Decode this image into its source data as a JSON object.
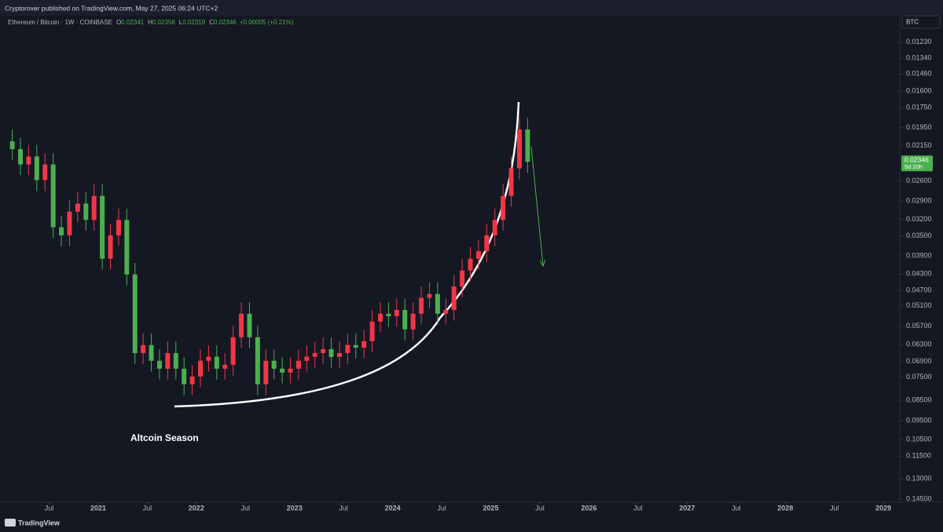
{
  "chart_data": {
    "type": "candlestick",
    "published": "Cryptorover published on TradingView.com, May 27, 2025 06:24 UTC+2",
    "symbol": "Ethereum / Bitcoin · 1W · COINBASE",
    "header_fields": [
      {
        "label": "O",
        "value": 0.02341
      },
      {
        "label": "H",
        "value": 0.02358
      },
      {
        "label": "L",
        "value": 0.02319
      },
      {
        "label": "C",
        "value": 0.02346
      }
    ],
    "change": "+0.00005 (+0.21%)",
    "currency": "BTC",
    "countdown": "5d 20h",
    "annotation": "Altcoin Season",
    "brand": "TradingView",
    "log_scale": true,
    "inverted": true,
    "grid": false,
    "up_color": "#4caf50",
    "down_color": "#f23645",
    "xlim": [
      "2020-01",
      "2029-03"
    ],
    "ylim": [
      0.0116,
      0.1462
    ],
    "x": [
      "2020-02",
      "2020-03",
      "2020-04",
      "2020-05",
      "2020-06",
      "2020-07",
      "2020-08",
      "2020-09",
      "2020-10",
      "2020-11",
      "2020-12",
      "2021-01",
      "2021-02",
      "2021-03",
      "2021-04",
      "2021-05",
      "2021-06",
      "2021-07",
      "2021-08",
      "2021-09",
      "2021-10",
      "2021-11",
      "2021-12",
      "2022-01",
      "2022-02",
      "2022-03",
      "2022-04",
      "2022-05",
      "2022-06",
      "2022-07",
      "2022-08",
      "2022-09",
      "2022-10",
      "2022-11",
      "2022-12",
      "2023-01",
      "2023-02",
      "2023-03",
      "2023-04",
      "2023-05",
      "2023-06",
      "2023-07",
      "2023-08",
      "2023-09",
      "2023-10",
      "2023-11",
      "2023-12",
      "2024-01",
      "2024-02",
      "2024-03",
      "2024-04",
      "2024-05",
      "2024-06",
      "2024-07",
      "2024-08",
      "2024-09",
      "2024-10",
      "2024-11",
      "2024-12",
      "2025-01",
      "2025-02",
      "2025-03",
      "2025-04",
      "2025-05"
    ],
    "open": [
      0.021,
      0.0219,
      0.0238,
      0.0228,
      0.0259,
      0.0238,
      0.0334,
      0.0349,
      0.0307,
      0.0294,
      0.0321,
      0.0282,
      0.0396,
      0.0349,
      0.0321,
      0.0431,
      0.0659,
      0.0631,
      0.0687,
      0.0717,
      0.0659,
      0.0717,
      0.078,
      0.0748,
      0.0687,
      0.0672,
      0.0717,
      0.0702,
      0.0605,
      0.0533,
      0.0605,
      0.078,
      0.0687,
      0.0717,
      0.0732,
      0.0717,
      0.0687,
      0.0672,
      0.0659,
      0.0645,
      0.0673,
      0.0659,
      0.0631,
      0.064,
      0.0618,
      0.0556,
      0.0533,
      0.054,
      0.0522,
      0.058,
      0.0533,
      0.0489,
      0.0479,
      0.0533,
      0.0522,
      0.046,
      0.0422,
      0.0396,
      0.038,
      0.0349,
      0.0321,
      0.0282,
      0.0243,
      0.0197
    ],
    "high": [
      0.0232,
      0.0252,
      0.0252,
      0.0275,
      0.0275,
      0.0354,
      0.037,
      0.037,
      0.0325,
      0.034,
      0.034,
      0.042,
      0.042,
      0.037,
      0.0457,
      0.0699,
      0.0699,
      0.0728,
      0.076,
      0.076,
      0.076,
      0.0827,
      0.0827,
      0.0793,
      0.0728,
      0.076,
      0.076,
      0.0744,
      0.0641,
      0.0641,
      0.0827,
      0.0827,
      0.076,
      0.0776,
      0.0776,
      0.076,
      0.0728,
      0.0712,
      0.0699,
      0.0713,
      0.0713,
      0.0699,
      0.0678,
      0.0678,
      0.0655,
      0.0589,
      0.0572,
      0.0572,
      0.0615,
      0.0615,
      0.0565,
      0.0518,
      0.0565,
      0.0565,
      0.0553,
      0.0488,
      0.0447,
      0.042,
      0.0403,
      0.037,
      0.034,
      0.0299,
      0.0258,
      0.0249
    ],
    "low": [
      0.0197,
      0.0206,
      0.0214,
      0.0214,
      0.0224,
      0.0224,
      0.0314,
      0.0289,
      0.0276,
      0.0276,
      0.0265,
      0.0265,
      0.0328,
      0.0302,
      0.0302,
      0.0405,
      0.0593,
      0.0593,
      0.0646,
      0.0619,
      0.0619,
      0.0674,
      0.0703,
      0.0646,
      0.0632,
      0.0632,
      0.066,
      0.0569,
      0.0501,
      0.0501,
      0.0569,
      0.0646,
      0.0646,
      0.0674,
      0.0674,
      0.0646,
      0.0632,
      0.0619,
      0.0606,
      0.0606,
      0.0619,
      0.0593,
      0.0593,
      0.0581,
      0.0523,
      0.0501,
      0.0501,
      0.0491,
      0.0491,
      0.0501,
      0.046,
      0.045,
      0.045,
      0.0491,
      0.0432,
      0.0397,
      0.0372,
      0.0357,
      0.0328,
      0.0302,
      0.0265,
      0.0228,
      0.0185,
      0.0185
    ],
    "close": [
      0.0219,
      0.0238,
      0.0228,
      0.0259,
      0.0238,
      0.0334,
      0.0349,
      0.0307,
      0.0294,
      0.0321,
      0.0282,
      0.0396,
      0.0349,
      0.0321,
      0.0431,
      0.0659,
      0.0631,
      0.0687,
      0.0717,
      0.0659,
      0.0717,
      0.078,
      0.0748,
      0.0687,
      0.0672,
      0.0717,
      0.0702,
      0.0605,
      0.0533,
      0.0605,
      0.078,
      0.0687,
      0.0717,
      0.0732,
      0.0717,
      0.0687,
      0.0672,
      0.0659,
      0.0645,
      0.0673,
      0.0659,
      0.0631,
      0.064,
      0.0618,
      0.0556,
      0.0533,
      0.054,
      0.0522,
      0.058,
      0.0533,
      0.0489,
      0.0479,
      0.0533,
      0.0522,
      0.046,
      0.0422,
      0.0396,
      0.038,
      0.0349,
      0.0321,
      0.0282,
      0.0243,
      0.0197,
      0.02346
    ],
    "yticks": [
      {
        "value": 0.0123,
        "label": "0.01230"
      },
      {
        "value": 0.0134,
        "label": "0.01340"
      },
      {
        "value": 0.0146,
        "label": "0.01460"
      },
      {
        "value": 0.016,
        "label": "0.01600"
      },
      {
        "value": 0.0175,
        "label": "0.01750"
      },
      {
        "value": 0.0195,
        "label": "0.01950"
      },
      {
        "value": 0.0215,
        "label": "0.02150"
      },
      {
        "value": 0.026,
        "label": "0.02600"
      },
      {
        "value": 0.029,
        "label": "0.02900"
      },
      {
        "value": 0.032,
        "label": "0.03200"
      },
      {
        "value": 0.035,
        "label": "0.03500"
      },
      {
        "value": 0.039,
        "label": "0.03900"
      },
      {
        "value": 0.043,
        "label": "0.04300"
      },
      {
        "value": 0.047,
        "label": "0.04700"
      },
      {
        "value": 0.051,
        "label": "0.05100"
      },
      {
        "value": 0.057,
        "label": "0.05700"
      },
      {
        "value": 0.063,
        "label": "0.06300"
      },
      {
        "value": 0.069,
        "label": "0.06900"
      },
      {
        "value": 0.075,
        "label": "0.07500"
      },
      {
        "value": 0.085,
        "label": "0.08500"
      },
      {
        "value": 0.095,
        "label": "0.09500"
      },
      {
        "value": 0.105,
        "label": "0.10500"
      },
      {
        "value": 0.115,
        "label": "0.11500"
      },
      {
        "value": 0.13,
        "label": "0.13000"
      },
      {
        "value": 0.145,
        "label": "0.14500"
      }
    ],
    "xticks": [
      {
        "value": "2020-07",
        "label": "Jul"
      },
      {
        "value": "2021-01",
        "label": "2021"
      },
      {
        "value": "2021-07",
        "label": "Jul"
      },
      {
        "value": "2022-01",
        "label": "2022"
      },
      {
        "value": "2022-07",
        "label": "Jul"
      },
      {
        "value": "2023-01",
        "label": "2023"
      },
      {
        "value": "2023-07",
        "label": "Jul"
      },
      {
        "value": "2024-01",
        "label": "2024"
      },
      {
        "value": "2024-07",
        "label": "Jul"
      },
      {
        "value": "2025-01",
        "label": "2025"
      },
      {
        "value": "2025-07",
        "label": "Jul"
      },
      {
        "value": "2026-01",
        "label": "2026"
      },
      {
        "value": "2026-07",
        "label": "Jul"
      },
      {
        "value": "2027-01",
        "label": "2027"
      },
      {
        "value": "2027-07",
        "label": "Jul"
      },
      {
        "value": "2028-01",
        "label": "2028"
      },
      {
        "value": "2028-07",
        "label": "Jul"
      },
      {
        "value": "2029-01",
        "label": "2029"
      }
    ]
  }
}
